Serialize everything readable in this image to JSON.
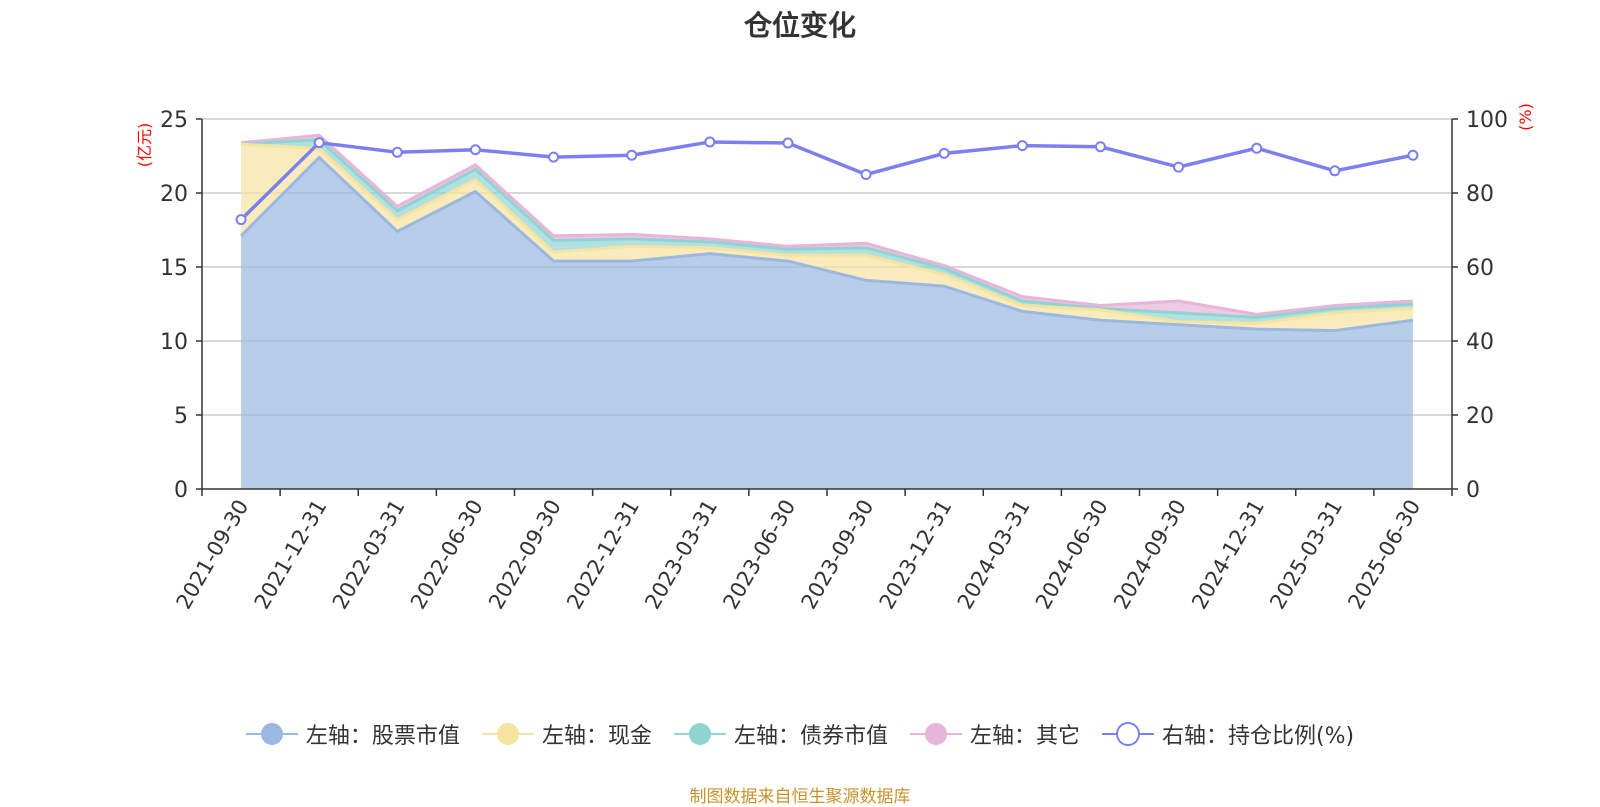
{
  "chart_data": {
    "type": "area",
    "title": "仓位变化",
    "source": "制图数据来自恒生聚源数据库",
    "x": [
      "2021-09-30",
      "2021-12-31",
      "2022-03-31",
      "2022-06-30",
      "2022-09-30",
      "2022-12-31",
      "2023-03-31",
      "2023-06-30",
      "2023-09-30",
      "2023-12-31",
      "2024-03-31",
      "2024-06-30",
      "2024-09-30",
      "2024-12-31",
      "2025-03-31",
      "2025-06-30"
    ],
    "left_axis": {
      "unit": "(亿元)",
      "ylim": [
        0,
        25
      ],
      "ticks": [
        0,
        5,
        10,
        15,
        20,
        25
      ]
    },
    "right_axis": {
      "unit": "(%)",
      "ylim": [
        0,
        100
      ],
      "ticks": [
        0,
        20,
        40,
        60,
        80,
        100
      ]
    },
    "stack_order": [
      "股票市值",
      "现金",
      "债券市值",
      "其它"
    ],
    "series": [
      {
        "name": "左轴：股票市值",
        "axis": "left",
        "kind": "stacked-area",
        "color": "#9ab8e0",
        "values": [
          17.1,
          22.4,
          17.4,
          20.1,
          15.4,
          15.4,
          15.9,
          15.4,
          14.1,
          13.7,
          12.0,
          11.4,
          11.1,
          10.8,
          10.7,
          11.4
        ]
      },
      {
        "name": "左轴：现金",
        "axis": "left",
        "kind": "stacked-area",
        "color": "#f7e3a0",
        "values": [
          6.2,
          0.6,
          0.8,
          0.8,
          0.6,
          1.0,
          0.4,
          0.4,
          1.7,
          0.8,
          0.4,
          0.7,
          0.2,
          0.4,
          1.2,
          0.8
        ]
      },
      {
        "name": "左轴：债券市值",
        "axis": "left",
        "kind": "stacked-area",
        "color": "#8fd3d3",
        "values": [
          0.0,
          0.6,
          0.6,
          0.7,
          0.8,
          0.5,
          0.4,
          0.4,
          0.5,
          0.4,
          0.3,
          0.1,
          0.6,
          0.4,
          0.3,
          0.3
        ]
      },
      {
        "name": "左轴：其它",
        "axis": "left",
        "kind": "stacked-area",
        "color": "#e8b4d8",
        "values": [
          0.1,
          0.3,
          0.3,
          0.3,
          0.3,
          0.3,
          0.2,
          0.2,
          0.3,
          0.2,
          0.3,
          0.2,
          0.8,
          0.2,
          0.2,
          0.2
        ]
      },
      {
        "name": "右轴：持仓比例(%)",
        "axis": "right",
        "kind": "line",
        "color": "#7b7ff0",
        "values": [
          72.8,
          93.6,
          91.0,
          91.7,
          89.7,
          90.2,
          93.8,
          93.5,
          85.0,
          90.7,
          92.8,
          92.5,
          87.0,
          92.1,
          86.0,
          90.2
        ]
      }
    ],
    "grid": true,
    "legend_position": "bottom"
  }
}
